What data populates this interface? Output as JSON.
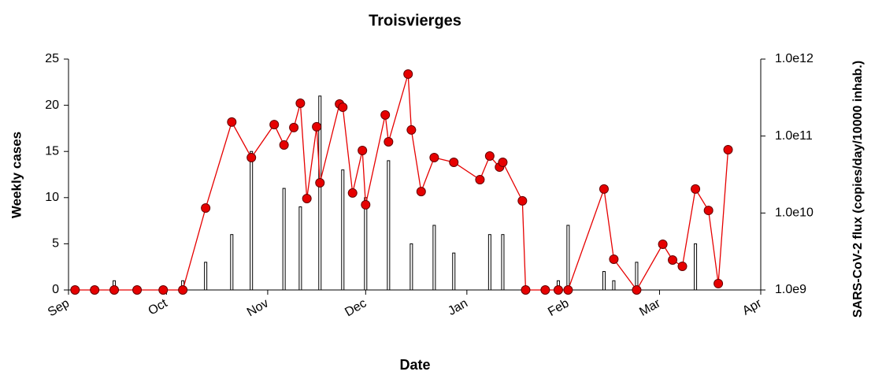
{
  "chart_data": {
    "type": "bar-line",
    "title": "Troisvierges",
    "x_label": "Date",
    "y_label": "Weekly cases",
    "y2_label": "SARS-CoV-2 flux (copies/day/10000 inhab.)",
    "xlim": [
      0,
      212
    ],
    "xticks": [
      {
        "value": 0,
        "label": "Sep"
      },
      {
        "value": 30,
        "label": "Oct"
      },
      {
        "value": 61,
        "label": "Nov"
      },
      {
        "value": 91,
        "label": "Dec"
      },
      {
        "value": 122,
        "label": "Jan"
      },
      {
        "value": 153,
        "label": "Feb"
      },
      {
        "value": 181,
        "label": "Mar"
      },
      {
        "value": 212,
        "label": "Apr"
      }
    ],
    "ylim": [
      0,
      25
    ],
    "yticks": [
      0,
      5,
      10,
      15,
      20,
      25
    ],
    "y2lim": [
      1000000000,
      1000000000000
    ],
    "y2ticks": [
      {
        "value": 1000000000,
        "label": "1.0e9"
      },
      {
        "value": 10000000000,
        "label": "1.0e10"
      },
      {
        "value": 100000000000,
        "label": "1.0e11"
      },
      {
        "value": 1000000000000,
        "label": "1.0e12"
      }
    ],
    "y2_log": true,
    "series": [
      {
        "type": "bar",
        "color": "#ffffff",
        "x": [
          14,
          35,
          42,
          50,
          56,
          66,
          71,
          77,
          84,
          91,
          98,
          105,
          112,
          118,
          129,
          133,
          150,
          153,
          164,
          167,
          174,
          192
        ],
        "values": [
          1,
          1,
          3,
          6,
          15,
          11,
          9,
          21,
          13,
          10,
          14,
          5,
          7,
          4,
          6,
          6,
          1,
          7,
          2,
          1,
          3,
          5
        ]
      },
      {
        "type": "line",
        "axis": "y2",
        "color": "#e60000",
        "x": [
          2,
          8,
          14,
          21,
          29,
          35,
          42,
          50,
          56,
          63,
          66,
          69,
          71,
          73,
          76,
          77,
          83,
          84,
          87,
          90,
          91,
          97,
          98,
          104,
          105,
          108,
          112,
          118,
          126,
          129,
          132,
          133,
          139,
          140,
          146,
          150,
          153,
          164,
          167,
          174,
          182,
          185,
          188,
          192,
          196,
          199,
          202
        ],
        "values": [
          1000000000,
          1000000000,
          1000000000,
          1000000000,
          1000000000,
          1000000000,
          11600000000,
          152000000000,
          52500000000,
          141000000000,
          76500000000,
          129000000000,
          267000000000,
          15400000000,
          132000000000,
          24700000000,
          261000000000,
          237000000000,
          18200000000,
          64900000000,
          12800000000,
          188000000000,
          84100000000,
          639000000000,
          120000000000,
          19000000000,
          52500000000,
          45600000000,
          27100000000,
          55000000000,
          39500000000,
          45600000000,
          14400000000,
          1000000000,
          1000000000,
          1000000000,
          1000000000,
          20500000000,
          2510000000,
          1000000000,
          3930000000,
          2450000000,
          2030000000,
          20500000000,
          10800000000,
          1210000000,
          66400000000
        ]
      }
    ]
  }
}
